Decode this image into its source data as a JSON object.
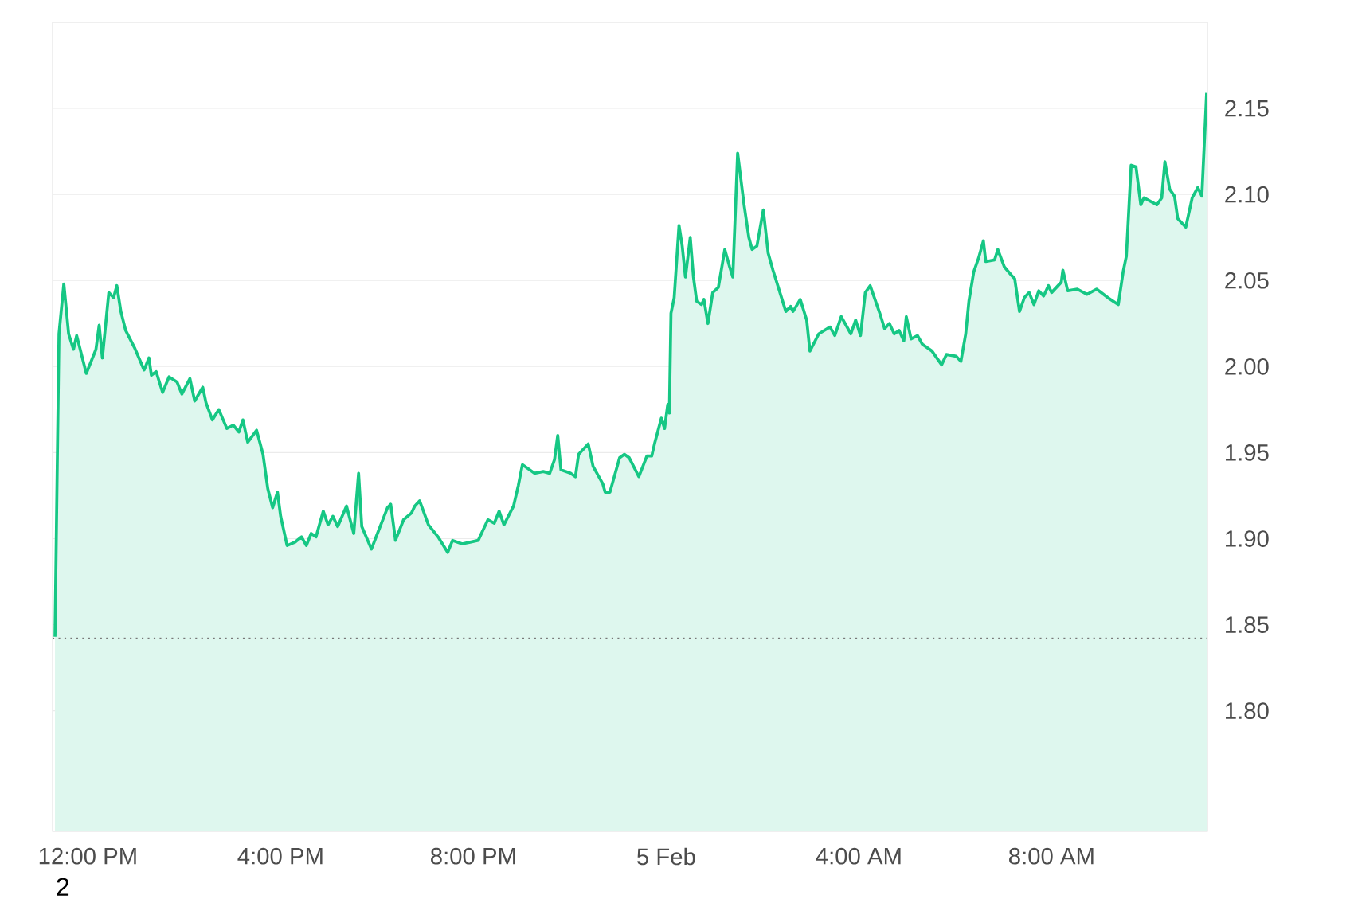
{
  "chart_data": {
    "type": "area",
    "x": [
      "--02-04T11:19",
      "--02-04T11:24",
      "--02-04T11:30",
      "--02-04T11:36",
      "--02-04T11:42",
      "--02-04T11:46",
      "--02-04T11:58",
      "--02-04T12:10",
      "--02-04T12:14",
      "--02-04T12:18",
      "--02-04T12:26",
      "--02-04T12:32",
      "--02-04T12:36",
      "--02-04T12:41",
      "--02-04T12:47",
      "--02-04T12:58",
      "--02-04T13:10",
      "--02-04T13:16",
      "--02-04T13:19",
      "--02-04T13:25",
      "--02-04T13:33",
      "--02-04T13:41",
      "--02-04T13:51",
      "--02-04T13:57",
      "--02-04T14:07",
      "--02-04T14:13",
      "--02-04T14:23",
      "--02-04T14:27",
      "--02-04T14:35",
      "--02-04T14:43",
      "--02-04T14:53",
      "--02-04T15:01",
      "--02-04T15:08",
      "--02-04T15:13",
      "--02-04T15:19",
      "--02-04T15:30",
      "--02-04T15:38",
      "--02-04T15:44",
      "--02-04T15:50",
      "--02-04T15:56",
      "--02-04T16:00",
      "--02-04T16:08",
      "--02-04T16:18",
      "--02-04T16:26",
      "--02-04T16:32",
      "--02-04T16:38",
      "--02-04T16:44",
      "--02-04T16:53",
      "--02-04T16:59",
      "--02-04T17:05",
      "--02-04T17:11",
      "--02-04T17:22",
      "--02-04T17:31",
      "--02-04T17:37",
      "--02-04T17:41",
      "--02-04T17:53",
      "--02-04T18:03",
      "--02-04T18:13",
      "--02-04T18:17",
      "--02-04T18:23",
      "--02-04T18:33",
      "--02-04T18:43",
      "--02-04T18:47",
      "--02-04T18:53",
      "--02-04T19:04",
      "--02-04T19:16",
      "--02-04T19:28",
      "--02-04T19:34",
      "--02-04T19:46",
      "--02-04T19:56",
      "--02-04T20:06",
      "--02-04T20:18",
      "--02-04T20:26",
      "--02-04T20:32",
      "--02-04T20:38",
      "--02-04T20:50",
      "--02-04T20:56",
      "--02-04T21:01",
      "--02-04T21:16",
      "--02-04T21:27",
      "--02-04T21:35",
      "--02-04T21:41",
      "--02-04T21:45",
      "--02-04T21:49",
      "--02-04T22:01",
      "--02-04T22:07",
      "--02-04T22:11",
      "--02-04T22:23",
      "--02-04T22:29",
      "--02-04T22:41",
      "--02-04T22:44",
      "--02-04T22:50",
      "--02-04T23:02",
      "--02-04T23:08",
      "--02-04T23:14",
      "--02-04T23:26",
      "--02-04T23:36",
      "--02-04T23:42",
      "--02-04T23:46",
      "--02-04T23:54",
      "--02-04T23:58",
      "--02-05T00:02",
      "--02-05T00:04",
      "--02-05T00:06",
      "--02-05T00:10",
      "--02-05T00:16",
      "--02-05T00:20",
      "--02-05T00:24",
      "--02-05T00:30",
      "--02-05T00:34",
      "--02-05T00:38",
      "--02-05T00:44",
      "--02-05T00:47",
      "--02-05T00:52",
      "--02-05T00:58",
      "--02-05T01:05",
      "--02-05T01:13",
      "--02-05T01:19",
      "--02-05T01:23",
      "--02-05T01:29",
      "--02-05T01:37",
      "--02-05T01:43",
      "--02-05T01:47",
      "--02-05T01:53",
      "--02-05T02:01",
      "--02-05T02:07",
      "--02-05T02:13",
      "--02-05T02:25",
      "--02-05T02:29",
      "--02-05T02:35",
      "--02-05T02:38",
      "--02-05T02:47",
      "--02-05T02:55",
      "--02-05T02:59",
      "--02-05T03:10",
      "--02-05T03:24",
      "--02-05T03:30",
      "--02-05T03:38",
      "--02-05T03:50",
      "--02-05T03:56",
      "--02-05T04:02",
      "--02-05T04:08",
      "--02-05T04:14",
      "--02-05T04:26",
      "--02-05T04:32",
      "--02-05T04:38",
      "--02-05T04:44",
      "--02-05T04:50",
      "--02-05T04:56",
      "--02-05T04:59",
      "--02-05T05:05",
      "--02-05T05:13",
      "--02-05T05:19",
      "--02-05T05:31",
      "--02-05T05:43",
      "--02-05T05:49",
      "--02-05T06:01",
      "--02-05T06:07",
      "--02-05T06:13",
      "--02-05T06:17",
      "--02-05T06:23",
      "--02-05T06:29",
      "--02-05T06:35",
      "--02-05T06:38",
      "--02-05T06:49",
      "--02-05T06:53",
      "--02-05T07:01",
      "--02-05T07:10",
      "--02-05T07:14",
      "--02-05T07:20",
      "--02-05T07:26",
      "--02-05T07:32",
      "--02-05T07:38",
      "--02-05T07:44",
      "--02-05T07:50",
      "--02-05T07:56",
      "--02-05T08:00",
      "--02-05T08:12",
      "--02-05T08:14",
      "--02-05T08:20",
      "--02-05T08:32",
      "--02-05T08:44",
      "--02-05T08:56",
      "--02-05T09:10",
      "--02-05T09:23",
      "--02-05T09:29",
      "--02-05T09:33",
      "--02-05T09:39",
      "--02-05T09:45",
      "--02-05T09:51",
      "--02-05T09:55",
      "--02-05T10:11",
      "--02-05T10:17",
      "--02-05T10:21",
      "--02-05T10:27",
      "--02-05T10:33",
      "--02-05T10:37",
      "--02-05T10:47",
      "--02-05T10:55",
      "--02-05T11:02",
      "--02-05T11:07",
      "--02-05T11:13"
    ],
    "series": [
      {
        "color": "#16c784",
        "values": [
          1.843,
          2.019,
          2.048,
          2.019,
          2.01,
          2.018,
          1.996,
          2.01,
          2.024,
          2.005,
          2.043,
          2.04,
          2.047,
          2.032,
          2.021,
          2.011,
          1.998,
          2.005,
          1.995,
          1.997,
          1.985,
          1.994,
          1.991,
          1.984,
          1.993,
          1.98,
          1.988,
          1.979,
          1.969,
          1.975,
          1.964,
          1.966,
          1.962,
          1.969,
          1.956,
          1.963,
          1.949,
          1.929,
          1.918,
          1.927,
          1.913,
          1.896,
          1.898,
          1.901,
          1.896,
          1.903,
          1.901,
          1.916,
          1.908,
          1.913,
          1.907,
          1.919,
          1.903,
          1.938,
          1.907,
          1.894,
          1.906,
          1.918,
          1.92,
          1.899,
          1.911,
          1.915,
          1.919,
          1.922,
          1.908,
          1.901,
          1.892,
          1.899,
          1.897,
          1.898,
          1.899,
          1.911,
          1.909,
          1.916,
          1.908,
          1.919,
          1.931,
          1.943,
          1.938,
          1.939,
          1.938,
          1.946,
          1.96,
          1.94,
          1.938,
          1.936,
          1.949,
          1.955,
          1.942,
          1.932,
          1.927,
          1.927,
          1.947,
          1.949,
          1.947,
          1.936,
          1.948,
          1.948,
          1.956,
          1.97,
          1.964,
          1.978,
          1.973,
          2.031,
          2.04,
          2.082,
          2.07,
          2.052,
          2.075,
          2.052,
          2.038,
          2.036,
          2.039,
          2.025,
          2.043,
          2.046,
          2.068,
          2.058,
          2.052,
          2.124,
          2.094,
          2.075,
          2.068,
          2.07,
          2.091,
          2.066,
          2.056,
          2.038,
          2.032,
          2.035,
          2.032,
          2.039,
          2.027,
          2.009,
          2.019,
          2.023,
          2.018,
          2.029,
          2.019,
          2.027,
          2.018,
          2.043,
          2.047,
          2.031,
          2.022,
          2.025,
          2.019,
          2.021,
          2.015,
          2.029,
          2.016,
          2.018,
          2.013,
          2.009,
          2.001,
          2.007,
          2.006,
          2.003,
          2.019,
          2.038,
          2.055,
          2.063,
          2.073,
          2.061,
          2.062,
          2.068,
          2.058,
          2.053,
          2.051,
          2.032,
          2.04,
          2.043,
          2.036,
          2.044,
          2.041,
          2.047,
          2.043,
          2.049,
          2.056,
          2.044,
          2.045,
          2.042,
          2.045,
          2.04,
          2.036,
          2.055,
          2.064,
          2.117,
          2.116,
          2.094,
          2.098,
          2.094,
          2.098,
          2.119,
          2.103,
          2.099,
          2.086,
          2.081,
          2.098,
          2.104,
          2.099,
          2.159
        ]
      }
    ],
    "xlim": [
      "--02-04T11:16",
      "--02-05T11:14"
    ],
    "ylim": [
      1.73,
      2.2
    ],
    "xticks": [
      {
        "value": "--02-04T12:00",
        "label": "12:00 PM"
      },
      {
        "value": "--02-04T16:00",
        "label": "4:00 PM"
      },
      {
        "value": "--02-04T20:00",
        "label": "8:00 PM"
      },
      {
        "value": "--02-05T00:00",
        "label": "5 Feb"
      },
      {
        "value": "--02-05T04:00",
        "label": "4:00 AM"
      },
      {
        "value": "--02-05T08:00",
        "label": "8:00 AM"
      }
    ],
    "yticks": [
      {
        "value": 1.8,
        "label": "1.80"
      },
      {
        "value": 1.85,
        "label": "1.85"
      },
      {
        "value": 1.9,
        "label": "1.90"
      },
      {
        "value": 1.95,
        "label": "1.95"
      },
      {
        "value": 2.0,
        "label": "2.00"
      },
      {
        "value": 2.05,
        "label": "2.05"
      },
      {
        "value": 2.1,
        "label": "2.10"
      },
      {
        "value": 2.15,
        "label": "2.15"
      }
    ],
    "grid": "y",
    "marker": "none",
    "line_style": "solid",
    "ref_lines": [
      {
        "axis": "y",
        "value": 1.842,
        "color": "#777777",
        "line_style": "dotted"
      }
    ],
    "annotations": [
      "2"
    ]
  }
}
